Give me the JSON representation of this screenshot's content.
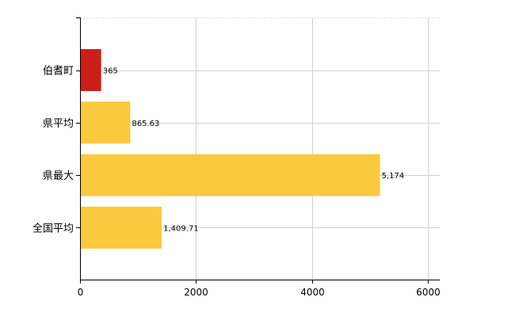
{
  "chart_data": {
    "type": "bar",
    "orientation": "horizontal",
    "categories": [
      "伯耆町",
      "県平均",
      "県最大",
      "全国平均"
    ],
    "values": [
      365,
      865.63,
      5174,
      1409.71
    ],
    "value_labels": [
      "365",
      "865.63",
      "5,174",
      "1,409.71"
    ],
    "bar_colors": [
      "#cc1f1a",
      "#fbc93d",
      "#fbc93d",
      "#fbc93d"
    ],
    "x_ticks": [
      0,
      2000,
      4000,
      6000
    ],
    "x_tick_labels": [
      "0",
      "2000",
      "4000",
      "6000"
    ],
    "xlim": [
      0,
      6000
    ],
    "grid": true,
    "title": "",
    "xlabel": "",
    "ylabel": ""
  }
}
